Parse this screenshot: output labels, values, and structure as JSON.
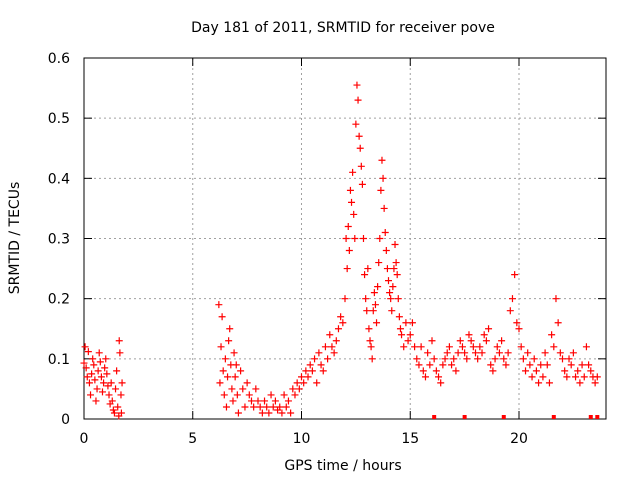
{
  "chart_data": {
    "type": "scatter",
    "title": "Day 181 of 2011, SRMTID for receiver pove",
    "xlabel": "GPS time / hours",
    "ylabel": "SRMTID / TECUs",
    "xlim": [
      0,
      24
    ],
    "ylim": [
      0,
      0.6
    ],
    "xticks": [
      0,
      5,
      10,
      15,
      20
    ],
    "yticks": [
      0,
      0.1,
      0.2,
      0.3,
      0.4,
      0.5,
      0.6
    ],
    "xtick_labels": [
      "0",
      "5",
      "10",
      "15",
      "20"
    ],
    "ytick_labels": [
      "0",
      "0.1",
      "0.2",
      "0.3",
      "0.4",
      "0.5",
      "0.6"
    ],
    "grid": true,
    "marker": "+",
    "color": "#ff0000",
    "series": [
      {
        "name": "SRMTID",
        "points": [
          [
            0.0,
            0.093
          ],
          [
            0.05,
            0.12
          ],
          [
            0.1,
            0.085
          ],
          [
            0.15,
            0.07
          ],
          [
            0.2,
            0.112
          ],
          [
            0.25,
            0.06
          ],
          [
            0.3,
            0.04
          ],
          [
            0.35,
            0.075
          ],
          [
            0.4,
            0.1
          ],
          [
            0.45,
            0.09
          ],
          [
            0.5,
            0.065
          ],
          [
            0.55,
            0.03
          ],
          [
            0.6,
            0.05
          ],
          [
            0.65,
            0.08
          ],
          [
            0.7,
            0.11
          ],
          [
            0.75,
            0.095
          ],
          [
            0.8,
            0.07
          ],
          [
            0.85,
            0.045
          ],
          [
            0.9,
            0.06
          ],
          [
            0.95,
            0.085
          ],
          [
            1.0,
            0.1
          ],
          [
            1.05,
            0.075
          ],
          [
            1.1,
            0.055
          ],
          [
            1.15,
            0.04
          ],
          [
            1.2,
            0.025
          ],
          [
            1.25,
            0.06
          ],
          [
            1.3,
            0.03
          ],
          [
            1.35,
            0.015
          ],
          [
            1.4,
            0.01
          ],
          [
            1.45,
            0.05
          ],
          [
            1.5,
            0.08
          ],
          [
            1.55,
            0.02
          ],
          [
            1.6,
            0.005
          ],
          [
            1.62,
            0.13
          ],
          [
            1.65,
            0.11
          ],
          [
            1.7,
            0.04
          ],
          [
            1.72,
            0.01
          ],
          [
            1.75,
            0.06
          ],
          [
            6.2,
            0.19
          ],
          [
            6.25,
            0.06
          ],
          [
            6.3,
            0.12
          ],
          [
            6.35,
            0.17
          ],
          [
            6.4,
            0.08
          ],
          [
            6.45,
            0.04
          ],
          [
            6.5,
            0.1
          ],
          [
            6.55,
            0.02
          ],
          [
            6.6,
            0.07
          ],
          [
            6.65,
            0.13
          ],
          [
            6.7,
            0.15
          ],
          [
            6.75,
            0.09
          ],
          [
            6.8,
            0.05
          ],
          [
            6.85,
            0.03
          ],
          [
            6.9,
            0.11
          ],
          [
            6.95,
            0.07
          ],
          [
            7.0,
            0.09
          ],
          [
            7.05,
            0.04
          ],
          [
            7.1,
            0.01
          ],
          [
            7.2,
            0.08
          ],
          [
            7.3,
            0.05
          ],
          [
            7.4,
            0.02
          ],
          [
            7.5,
            0.06
          ],
          [
            7.6,
            0.04
          ],
          [
            7.7,
            0.03
          ],
          [
            7.8,
            0.02
          ],
          [
            7.9,
            0.05
          ],
          [
            8.0,
            0.03
          ],
          [
            8.1,
            0.02
          ],
          [
            8.2,
            0.01
          ],
          [
            8.3,
            0.03
          ],
          [
            8.4,
            0.02
          ],
          [
            8.5,
            0.01
          ],
          [
            8.6,
            0.04
          ],
          [
            8.7,
            0.02
          ],
          [
            8.8,
            0.03
          ],
          [
            8.9,
            0.015
          ],
          [
            9.0,
            0.02
          ],
          [
            9.1,
            0.01
          ],
          [
            9.2,
            0.04
          ],
          [
            9.3,
            0.02
          ],
          [
            9.4,
            0.03
          ],
          [
            9.5,
            0.01
          ],
          [
            9.6,
            0.05
          ],
          [
            9.7,
            0.04
          ],
          [
            9.8,
            0.06
          ],
          [
            9.9,
            0.05
          ],
          [
            10.0,
            0.07
          ],
          [
            10.1,
            0.06
          ],
          [
            10.2,
            0.08
          ],
          [
            10.3,
            0.07
          ],
          [
            10.4,
            0.09
          ],
          [
            10.5,
            0.08
          ],
          [
            10.6,
            0.1
          ],
          [
            10.7,
            0.06
          ],
          [
            10.8,
            0.11
          ],
          [
            10.9,
            0.09
          ],
          [
            11.0,
            0.08
          ],
          [
            11.1,
            0.12
          ],
          [
            11.2,
            0.1
          ],
          [
            11.3,
            0.14
          ],
          [
            11.4,
            0.12
          ],
          [
            11.5,
            0.11
          ],
          [
            11.6,
            0.13
          ],
          [
            11.7,
            0.15
          ],
          [
            11.8,
            0.17
          ],
          [
            11.9,
            0.16
          ],
          [
            12.0,
            0.2
          ],
          [
            12.05,
            0.3
          ],
          [
            12.1,
            0.25
          ],
          [
            12.15,
            0.32
          ],
          [
            12.2,
            0.28
          ],
          [
            12.25,
            0.38
          ],
          [
            12.3,
            0.36
          ],
          [
            12.35,
            0.41
          ],
          [
            12.4,
            0.34
          ],
          [
            12.45,
            0.3
          ],
          [
            12.5,
            0.49
          ],
          [
            12.55,
            0.555
          ],
          [
            12.6,
            0.53
          ],
          [
            12.65,
            0.47
          ],
          [
            12.7,
            0.45
          ],
          [
            12.75,
            0.42
          ],
          [
            12.8,
            0.39
          ],
          [
            12.85,
            0.3
          ],
          [
            12.9,
            0.24
          ],
          [
            12.95,
            0.2
          ],
          [
            13.0,
            0.18
          ],
          [
            13.05,
            0.25
          ],
          [
            13.1,
            0.15
          ],
          [
            13.15,
            0.13
          ],
          [
            13.2,
            0.12
          ],
          [
            13.25,
            0.1
          ],
          [
            13.3,
            0.18
          ],
          [
            13.35,
            0.21
          ],
          [
            13.4,
            0.19
          ],
          [
            13.45,
            0.16
          ],
          [
            13.5,
            0.22
          ],
          [
            13.55,
            0.26
          ],
          [
            13.6,
            0.3
          ],
          [
            13.65,
            0.38
          ],
          [
            13.7,
            0.43
          ],
          [
            13.75,
            0.4
          ],
          [
            13.8,
            0.35
          ],
          [
            13.85,
            0.31
          ],
          [
            13.9,
            0.28
          ],
          [
            13.95,
            0.25
          ],
          [
            14.0,
            0.23
          ],
          [
            14.05,
            0.21
          ],
          [
            14.1,
            0.2
          ],
          [
            14.15,
            0.18
          ],
          [
            14.2,
            0.22
          ],
          [
            14.25,
            0.25
          ],
          [
            14.3,
            0.29
          ],
          [
            14.35,
            0.26
          ],
          [
            14.4,
            0.24
          ],
          [
            14.45,
            0.2
          ],
          [
            14.5,
            0.17
          ],
          [
            14.55,
            0.15
          ],
          [
            14.6,
            0.14
          ],
          [
            14.7,
            0.12
          ],
          [
            14.8,
            0.16
          ],
          [
            14.9,
            0.13
          ],
          [
            15.0,
            0.14
          ],
          [
            15.1,
            0.16
          ],
          [
            15.2,
            0.12
          ],
          [
            15.3,
            0.1
          ],
          [
            15.4,
            0.09
          ],
          [
            15.5,
            0.12
          ],
          [
            15.6,
            0.08
          ],
          [
            15.7,
            0.07
          ],
          [
            15.8,
            0.11
          ],
          [
            15.9,
            0.09
          ],
          [
            16.0,
            0.13
          ],
          [
            16.1,
            0.1
          ],
          [
            16.2,
            0.08
          ],
          [
            16.3,
            0.07
          ],
          [
            16.4,
            0.06
          ],
          [
            16.5,
            0.09
          ],
          [
            16.6,
            0.1
          ],
          [
            16.7,
            0.11
          ],
          [
            16.8,
            0.12
          ],
          [
            16.9,
            0.09
          ],
          [
            17.0,
            0.1
          ],
          [
            17.1,
            0.08
          ],
          [
            17.2,
            0.11
          ],
          [
            17.3,
            0.13
          ],
          [
            17.4,
            0.12
          ],
          [
            17.5,
            0.11
          ],
          [
            17.6,
            0.1
          ],
          [
            17.7,
            0.14
          ],
          [
            17.8,
            0.13
          ],
          [
            17.9,
            0.12
          ],
          [
            18.0,
            0.11
          ],
          [
            18.1,
            0.1
          ],
          [
            18.2,
            0.12
          ],
          [
            18.3,
            0.11
          ],
          [
            18.4,
            0.14
          ],
          [
            18.5,
            0.13
          ],
          [
            18.6,
            0.15
          ],
          [
            18.7,
            0.09
          ],
          [
            18.8,
            0.08
          ],
          [
            18.9,
            0.1
          ],
          [
            19.0,
            0.12
          ],
          [
            19.1,
            0.11
          ],
          [
            19.2,
            0.13
          ],
          [
            19.3,
            0.1
          ],
          [
            19.4,
            0.09
          ],
          [
            19.5,
            0.11
          ],
          [
            19.6,
            0.18
          ],
          [
            19.7,
            0.2
          ],
          [
            19.8,
            0.24
          ],
          [
            19.9,
            0.16
          ],
          [
            20.0,
            0.15
          ],
          [
            20.1,
            0.12
          ],
          [
            20.2,
            0.1
          ],
          [
            20.3,
            0.08
          ],
          [
            20.4,
            0.11
          ],
          [
            20.5,
            0.09
          ],
          [
            20.6,
            0.07
          ],
          [
            20.7,
            0.1
          ],
          [
            20.8,
            0.08
          ],
          [
            20.9,
            0.06
          ],
          [
            21.0,
            0.09
          ],
          [
            21.1,
            0.07
          ],
          [
            21.2,
            0.11
          ],
          [
            21.3,
            0.09
          ],
          [
            21.4,
            0.06
          ],
          [
            21.5,
            0.14
          ],
          [
            21.6,
            0.12
          ],
          [
            21.7,
            0.2
          ],
          [
            21.8,
            0.16
          ],
          [
            21.9,
            0.11
          ],
          [
            22.0,
            0.1
          ],
          [
            22.1,
            0.08
          ],
          [
            22.2,
            0.07
          ],
          [
            22.3,
            0.1
          ],
          [
            22.4,
            0.09
          ],
          [
            22.5,
            0.11
          ],
          [
            22.6,
            0.07
          ],
          [
            22.7,
            0.08
          ],
          [
            22.8,
            0.06
          ],
          [
            22.9,
            0.09
          ],
          [
            23.0,
            0.07
          ],
          [
            23.1,
            0.12
          ],
          [
            23.2,
            0.09
          ],
          [
            23.3,
            0.08
          ],
          [
            23.4,
            0.07
          ],
          [
            23.5,
            0.06
          ],
          [
            23.6,
            0.07
          ]
        ]
      }
    ],
    "baseline_points": [
      16.1,
      17.5,
      19.3,
      21.6,
      23.3,
      23.6
    ]
  }
}
